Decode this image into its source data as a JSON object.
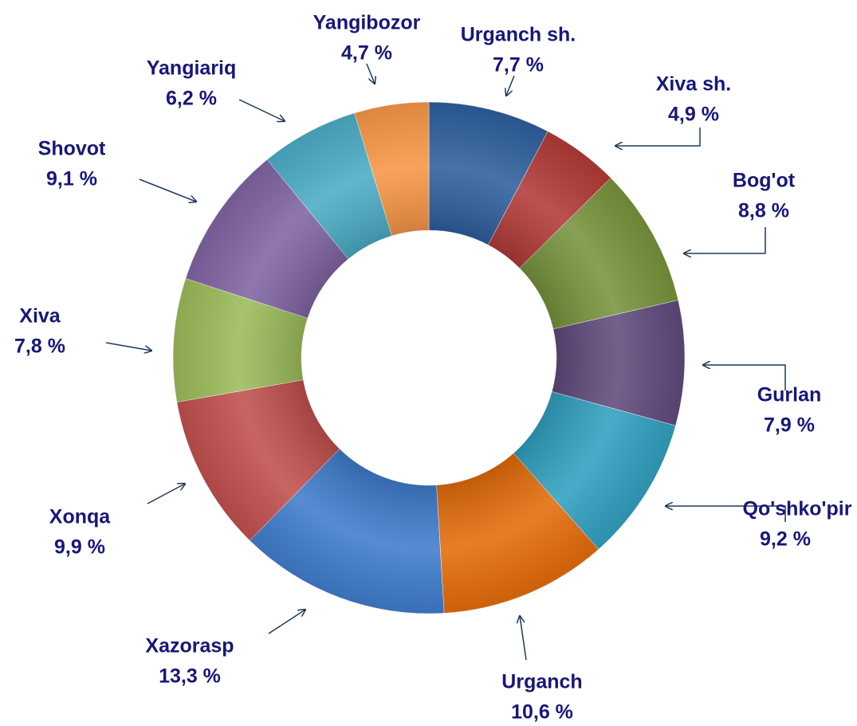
{
  "chart_data": {
    "type": "donut",
    "categories": [
      "Urganch sh.",
      "Xiva sh.",
      "Bog'ot",
      "Gurlan",
      "Qo'shko'pir",
      "Urganch",
      "Xazorasp",
      "Xonqa",
      "Xiva",
      "Shovot",
      "Yangiariq",
      "Yangibozor"
    ],
    "values": [
      7.7,
      4.9,
      8.8,
      7.9,
      9.2,
      10.6,
      13.3,
      9.9,
      7.8,
      9.1,
      6.2,
      4.7
    ],
    "value_labels": [
      "7,7 %",
      "4,9 %",
      "8,8 %",
      "7,9 %",
      "9,2 %",
      "10,6 %",
      "13,3 %",
      "9,9 %",
      "7,8 %",
      "9,1 %",
      "6,2 %",
      "4,7 %"
    ],
    "colors": [
      "#2e5f9e",
      "#b23a37",
      "#77933c",
      "#604a7b",
      "#31a0c0",
      "#e46c0a",
      "#3f7ccc",
      "#c0504d",
      "#9bbb59",
      "#8064a2",
      "#4bacc6",
      "#f79646"
    ]
  }
}
